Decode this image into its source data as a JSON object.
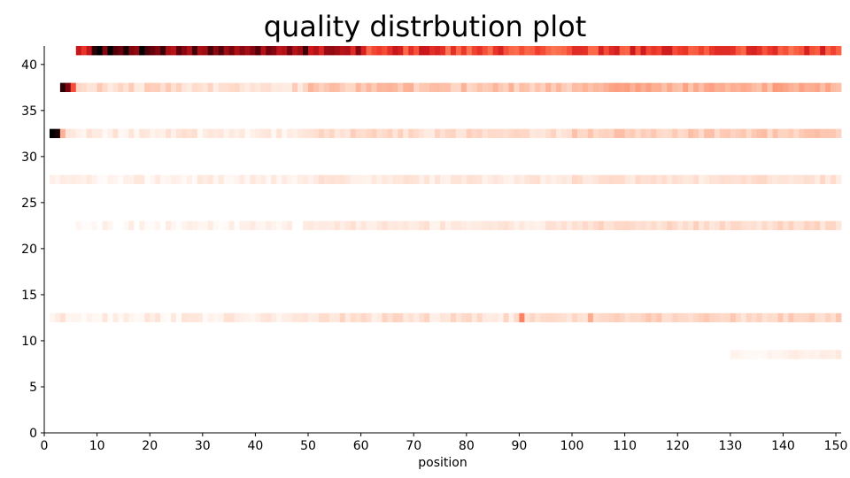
{
  "chart_data": {
    "type": "heatmap",
    "title": "quality distrbution plot",
    "xlabel": "position",
    "ylabel": "",
    "xlim": [
      0,
      151
    ],
    "ylim": [
      0,
      42
    ],
    "x_ticks": [
      0,
      10,
      20,
      30,
      40,
      50,
      60,
      70,
      80,
      90,
      100,
      110,
      120,
      130,
      140,
      150
    ],
    "y_ticks": [
      0,
      5,
      10,
      15,
      20,
      25,
      30,
      35,
      40
    ],
    "colormap": "Reds",
    "colormap_stops": [
      "#ffffff",
      "#fee0d2",
      "#fcbba1",
      "#fc9272",
      "#fb6a4a",
      "#ef3b2c",
      "#cb181d",
      "#a50f15",
      "#67000d",
      "#000000"
    ],
    "grid": false,
    "legend": "none",
    "rows": [
      {
        "y": 41,
        "x_start": 6,
        "x_end": 151,
        "segments": [
          {
            "from": 6,
            "to": 9,
            "intensity": 0.62
          },
          {
            "from": 9,
            "to": 20,
            "intensity": 0.93
          },
          {
            "from": 20,
            "to": 50,
            "intensity": 0.82
          },
          {
            "from": 50,
            "to": 60,
            "intensity": 0.72
          },
          {
            "from": 60,
            "to": 75,
            "intensity": 0.56
          },
          {
            "from": 75,
            "to": 100,
            "intensity": 0.52
          },
          {
            "from": 100,
            "to": 130,
            "intensity": 0.55
          },
          {
            "from": 130,
            "to": 151,
            "intensity": 0.53
          }
        ],
        "variation": 0.12
      },
      {
        "y": 37,
        "x_start": 3,
        "x_end": 151,
        "segments": [
          {
            "from": 3,
            "to": 5,
            "intensity": 0.9
          },
          {
            "from": 5,
            "to": 6,
            "intensity": 0.55
          },
          {
            "from": 6,
            "to": 50,
            "intensity": 0.12
          },
          {
            "from": 50,
            "to": 100,
            "intensity": 0.19
          },
          {
            "from": 100,
            "to": 151,
            "intensity": 0.25
          }
        ],
        "variation": 0.06
      },
      {
        "y": 32,
        "x_start": 1,
        "x_end": 151,
        "segments": [
          {
            "from": 1,
            "to": 3,
            "intensity": 1.0
          },
          {
            "from": 3,
            "to": 4,
            "intensity": 0.2
          },
          {
            "from": 4,
            "to": 50,
            "intensity": 0.07
          },
          {
            "from": 50,
            "to": 100,
            "intensity": 0.12
          },
          {
            "from": 100,
            "to": 151,
            "intensity": 0.17
          }
        ],
        "variation": 0.05
      },
      {
        "y": 27,
        "x_start": 1,
        "x_end": 151,
        "segments": [
          {
            "from": 1,
            "to": 50,
            "intensity": 0.05
          },
          {
            "from": 50,
            "to": 100,
            "intensity": 0.08
          },
          {
            "from": 100,
            "to": 151,
            "intensity": 0.1
          }
        ],
        "variation": 0.04
      },
      {
        "y": 22,
        "x_start": 5,
        "x_end": 151,
        "segments": [
          {
            "from": 5,
            "to": 50,
            "intensity": 0.035
          },
          {
            "from": 50,
            "to": 100,
            "intensity": 0.08
          },
          {
            "from": 100,
            "to": 151,
            "intensity": 0.12
          }
        ],
        "variation": 0.04
      },
      {
        "y": 12,
        "x_start": 1,
        "x_end": 151,
        "segments": [
          {
            "from": 1,
            "to": 50,
            "intensity": 0.06
          },
          {
            "from": 50,
            "to": 100,
            "intensity": 0.1
          },
          {
            "from": 100,
            "to": 151,
            "intensity": 0.14
          }
        ],
        "variation": 0.05,
        "peaks": [
          {
            "x": 90,
            "intensity": 0.38
          },
          {
            "x": 103,
            "intensity": 0.26
          }
        ]
      },
      {
        "y": 8,
        "x_start": 130,
        "x_end": 151,
        "segments": [
          {
            "from": 130,
            "to": 140,
            "intensity": 0.03
          },
          {
            "from": 140,
            "to": 151,
            "intensity": 0.06
          }
        ],
        "variation": 0.02
      }
    ]
  }
}
